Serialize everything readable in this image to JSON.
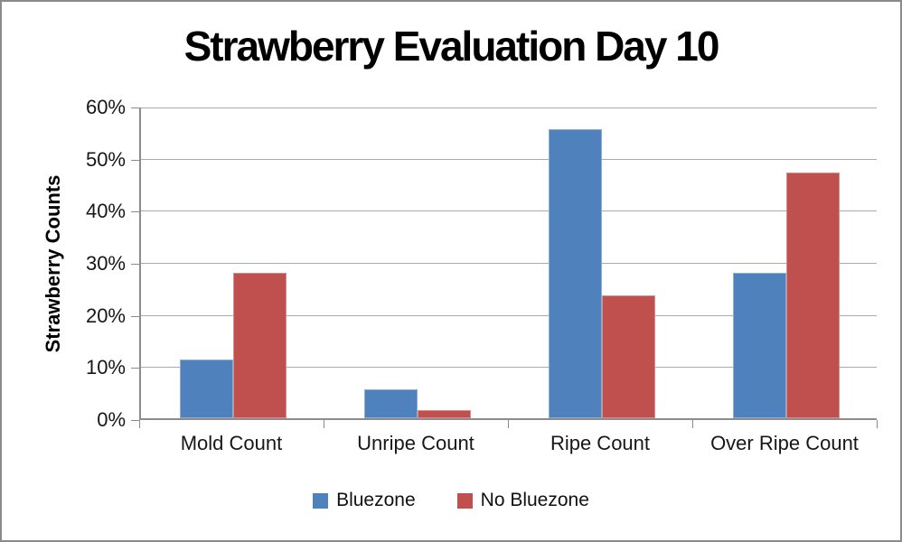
{
  "chart_data": {
    "type": "bar",
    "title": "Strawberry Evaluation Day 10",
    "ylabel": "Strawberry Counts",
    "xlabel": "",
    "categories": [
      "Mold Count",
      "Unripe Count",
      "Ripe Count",
      "Over Ripe Count"
    ],
    "series": [
      {
        "name": "Bluezone",
        "color": "#4F81BD",
        "values": [
          11.2,
          5.5,
          55.5,
          27.9
        ]
      },
      {
        "name": "No Bluezone",
        "color": "#C0504D",
        "values": [
          27.9,
          1.5,
          23.5,
          47.2
        ]
      }
    ],
    "ylim": [
      0,
      60
    ],
    "ytick_step": 10,
    "ytick_labels": [
      "0%",
      "10%",
      "20%",
      "30%",
      "40%",
      "50%",
      "60%"
    ],
    "grid": true,
    "legend_position": "bottom",
    "colors": {
      "gridline": "#ABABAB",
      "axis": "#8C8C8C",
      "text": "#171717",
      "frame_border": "#8A8A8A",
      "background": "#FFFFFF"
    }
  }
}
